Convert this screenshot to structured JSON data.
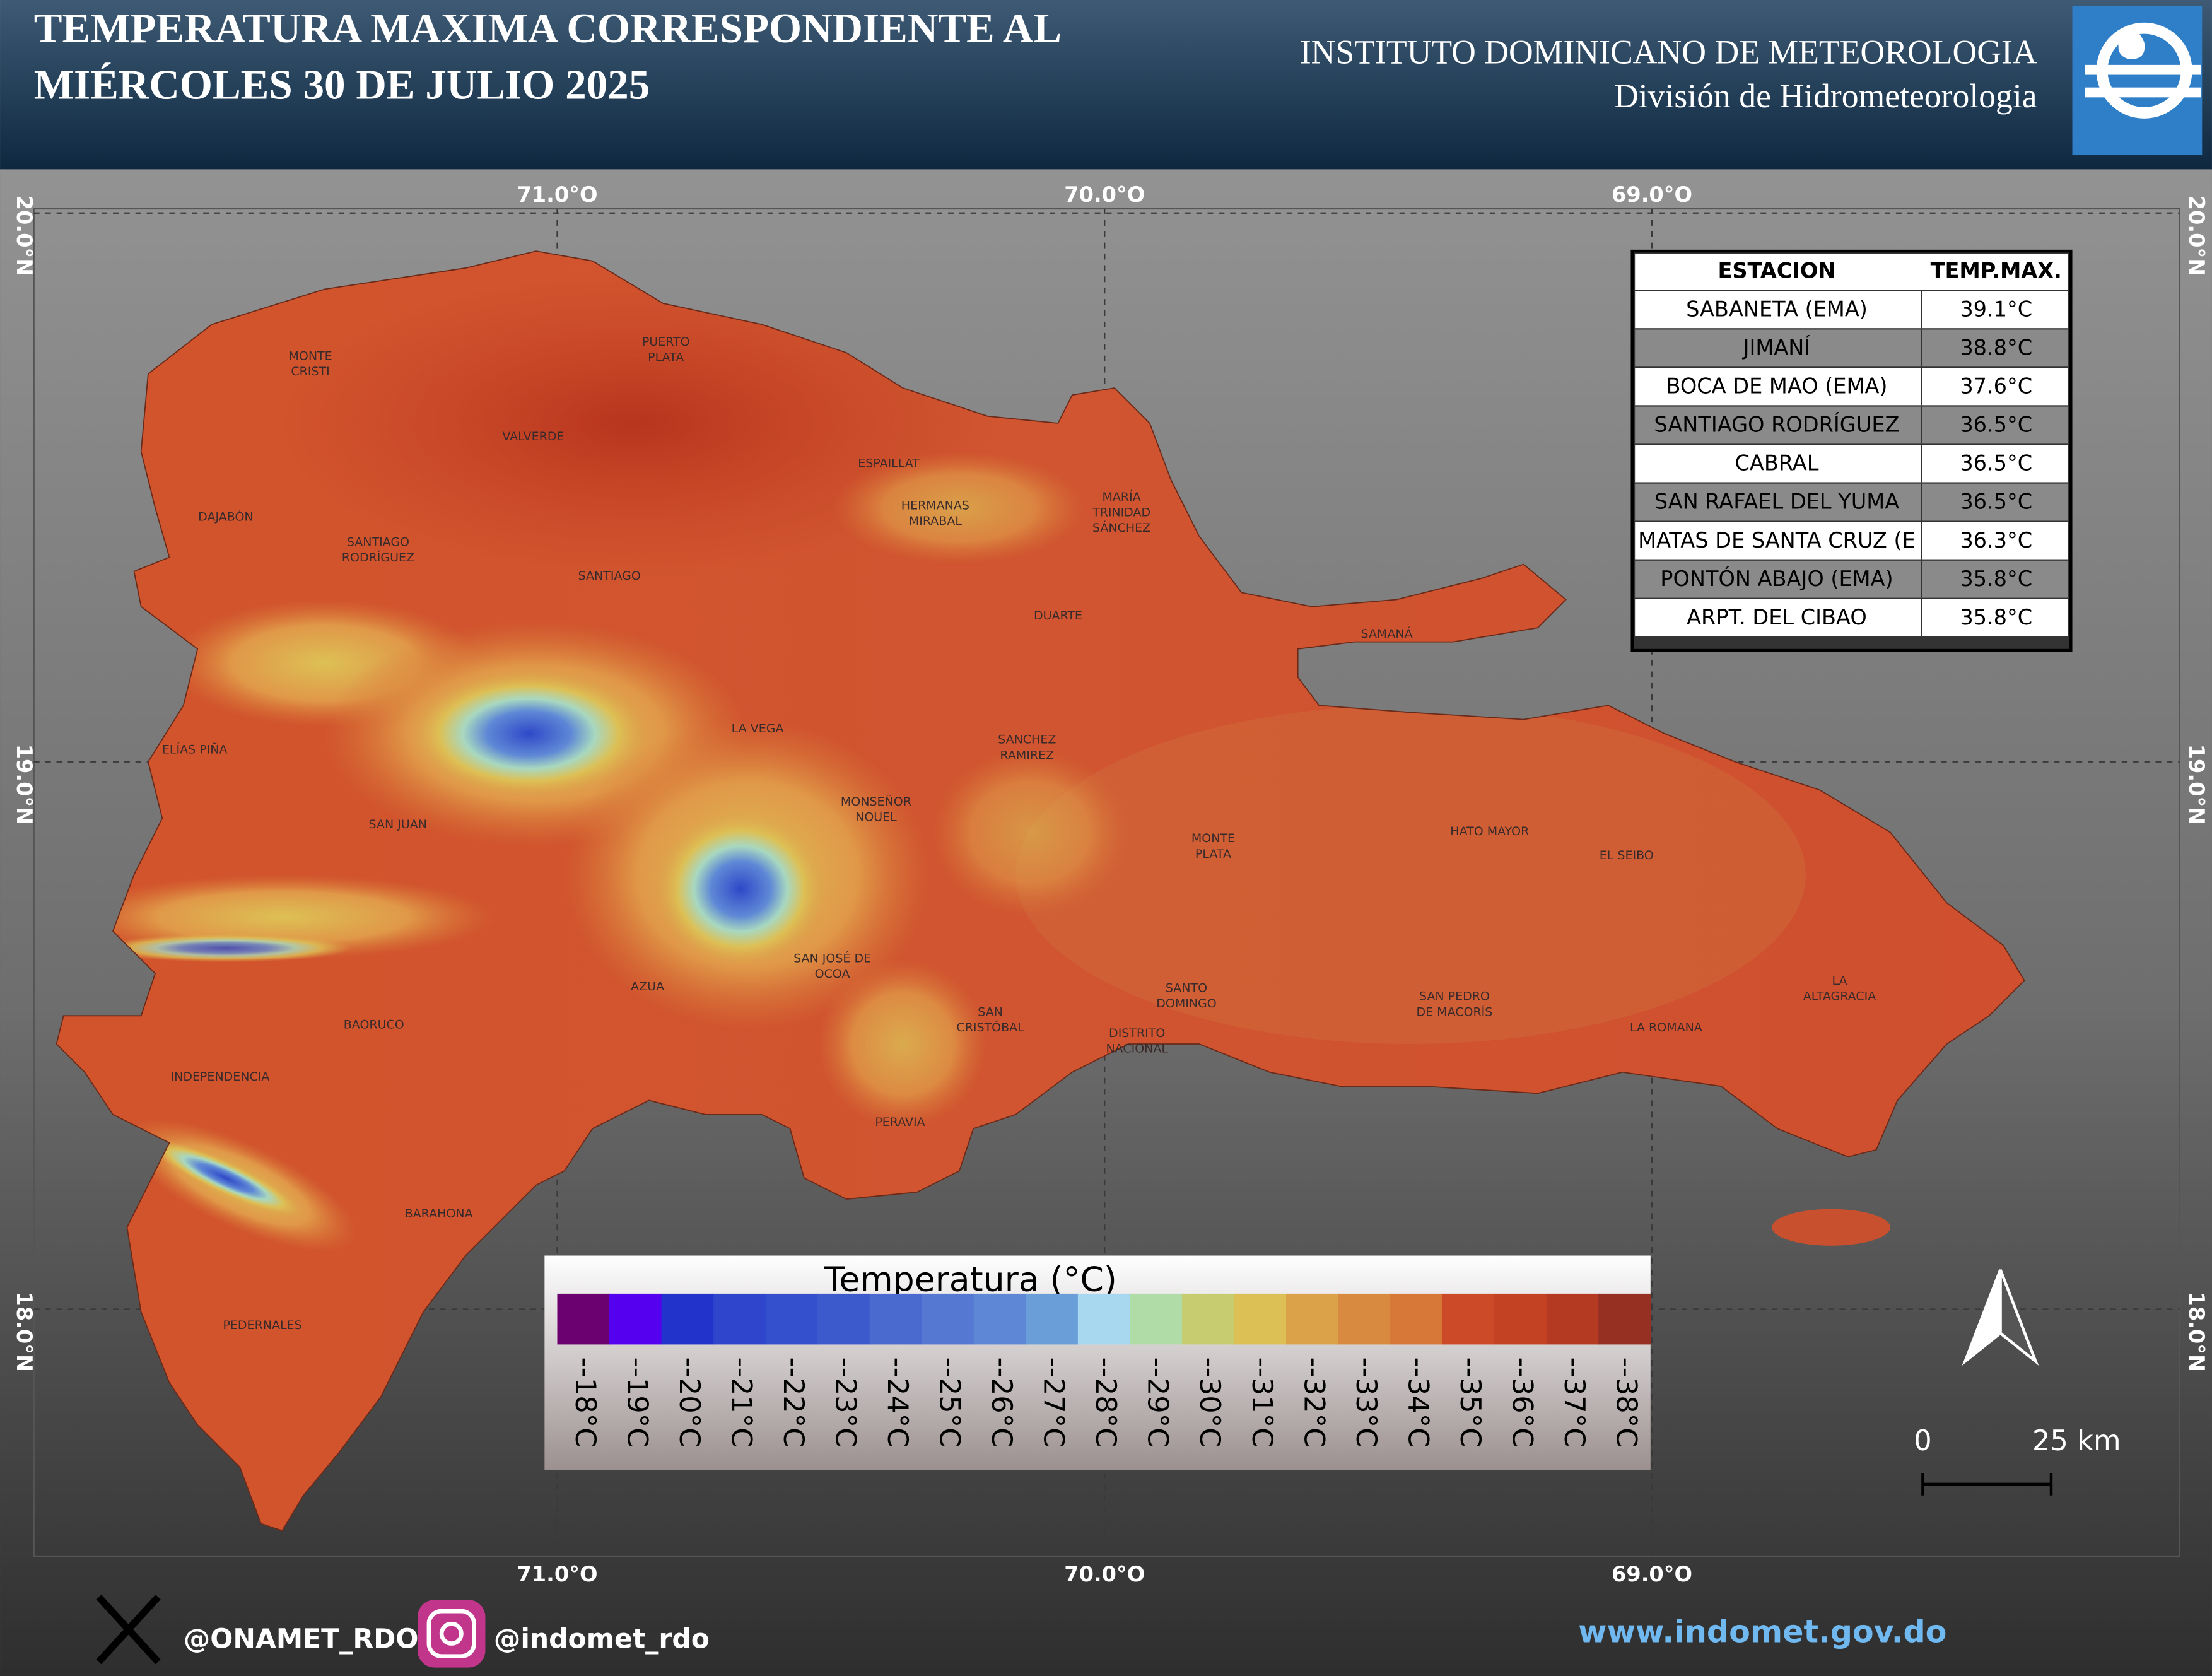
{
  "header": {
    "title_lines": [
      "TEMPERATURA MAXIMA CORRESPONDIENTE AL",
      "MIÉRCOLES 30 DE JULIO 2025"
    ],
    "institute": "INSTITUTO DOMINICANO DE METEOROLOGIA",
    "division": "División de Hidrometeorologia"
  },
  "map": {
    "longitude_labels": [
      "71.0°O",
      "70.0°O",
      "69.0°O"
    ],
    "latitude_labels": [
      "20.0°N",
      "19.0°N",
      "18.0°N"
    ],
    "provinces": [
      [
        "MONTE",
        "CRISTI"
      ],
      [
        "PUERTO",
        "PLATA"
      ],
      [
        "VALVERDE"
      ],
      [
        "ESPAILLAT"
      ],
      [
        "HERMANAS",
        "MIRABAL"
      ],
      [
        "MARÍA",
        "TRINIDAD",
        "SÁNCHEZ"
      ],
      [
        "DAJABÓN"
      ],
      [
        "SANTIAGO",
        "RODRÍGUEZ"
      ],
      [
        "SANTIAGO"
      ],
      [
        "DUARTE"
      ],
      [
        "SAMANÁ"
      ],
      [
        "LA VEGA"
      ],
      [
        "ELÍAS PIÑA"
      ],
      [
        "SANCHEZ",
        "RAMIREZ"
      ],
      [
        "MONSEÑOR",
        "NOUEL"
      ],
      [
        "SAN JUAN"
      ],
      [
        "MONTE",
        "PLATA"
      ],
      [
        "HATO MAYOR"
      ],
      [
        "EL SEIBO"
      ],
      [
        "SAN JOSÉ DE",
        "OCOA"
      ],
      [
        "AZUA"
      ],
      [
        "LA",
        "ALTAGRACIA"
      ],
      [
        "SANTO",
        "DOMINGO"
      ],
      [
        "SAN PEDRO",
        "DE MACORÍS"
      ],
      [
        "SAN",
        "CRISTÓBAL"
      ],
      [
        "BAORUCO"
      ],
      [
        "LA ROMANA"
      ],
      [
        "DISTRITO",
        "NACIONAL"
      ],
      [
        "INDEPENDENCIA"
      ],
      [
        "PERAVIA"
      ],
      [
        "BARAHONA"
      ],
      [
        "PEDERNALES"
      ]
    ]
  },
  "table": {
    "columns": [
      "ESTACION",
      "TEMP.MAX."
    ],
    "rows": [
      [
        "SABANETA (EMA)",
        "39.1°C"
      ],
      [
        "JIMANÍ",
        "38.8°C"
      ],
      [
        "BOCA DE MAO (EMA)",
        "37.6°C"
      ],
      [
        "SANTIAGO RODRÍGUEZ",
        "36.5°C"
      ],
      [
        "CABRAL",
        "36.5°C"
      ],
      [
        "SAN RAFAEL DEL YUMA",
        "36.5°C"
      ],
      [
        "MATAS DE SANTA CRUZ (E",
        "36.3°C"
      ],
      [
        "PONTÓN ABAJO (EMA)",
        "35.8°C"
      ],
      [
        "ARPT. DEL CIBAO",
        "35.8°C"
      ]
    ]
  },
  "legend": {
    "title": "Temperatura (°C)",
    "items": [
      {
        "label": "--18°C",
        "color": "#6b0070"
      },
      {
        "label": "--19°C",
        "color": "#5500ee"
      },
      {
        "label": "--20°C",
        "color": "#2233cc"
      },
      {
        "label": "--21°C",
        "color": "#2f45cc"
      },
      {
        "label": "--22°C",
        "color": "#3550cc"
      },
      {
        "label": "--23°C",
        "color": "#3d5acc"
      },
      {
        "label": "--24°C",
        "color": "#4a6ad0"
      },
      {
        "label": "--25°C",
        "color": "#5578d2"
      },
      {
        "label": "--26°C",
        "color": "#5e88d6"
      },
      {
        "label": "--27°C",
        "color": "#6a9ed8"
      },
      {
        "label": "--28°C",
        "color": "#a8d8f0"
      },
      {
        "label": "--29°C",
        "color": "#b0dca8"
      },
      {
        "label": "--30°C",
        "color": "#c8cc70"
      },
      {
        "label": "--31°C",
        "color": "#ddc055"
      },
      {
        "label": "--32°C",
        "color": "#dca24a"
      },
      {
        "label": "--33°C",
        "color": "#d88a40"
      },
      {
        "label": "--34°C",
        "color": "#d87838"
      },
      {
        "label": "--35°C",
        "color": "#cc4a28"
      },
      {
        "label": "--36°C",
        "color": "#c44224"
      },
      {
        "label": "--37°C",
        "color": "#b43a22"
      },
      {
        "label": "--38°C",
        "color": "#963022"
      }
    ]
  },
  "scale_bar": {
    "labels": [
      "0",
      "25 km"
    ]
  },
  "footer": {
    "x_handle": "@ONAMET_RDO",
    "instagram_handle": "@indomet_rdo",
    "website": "www.indomet.gov.do"
  }
}
